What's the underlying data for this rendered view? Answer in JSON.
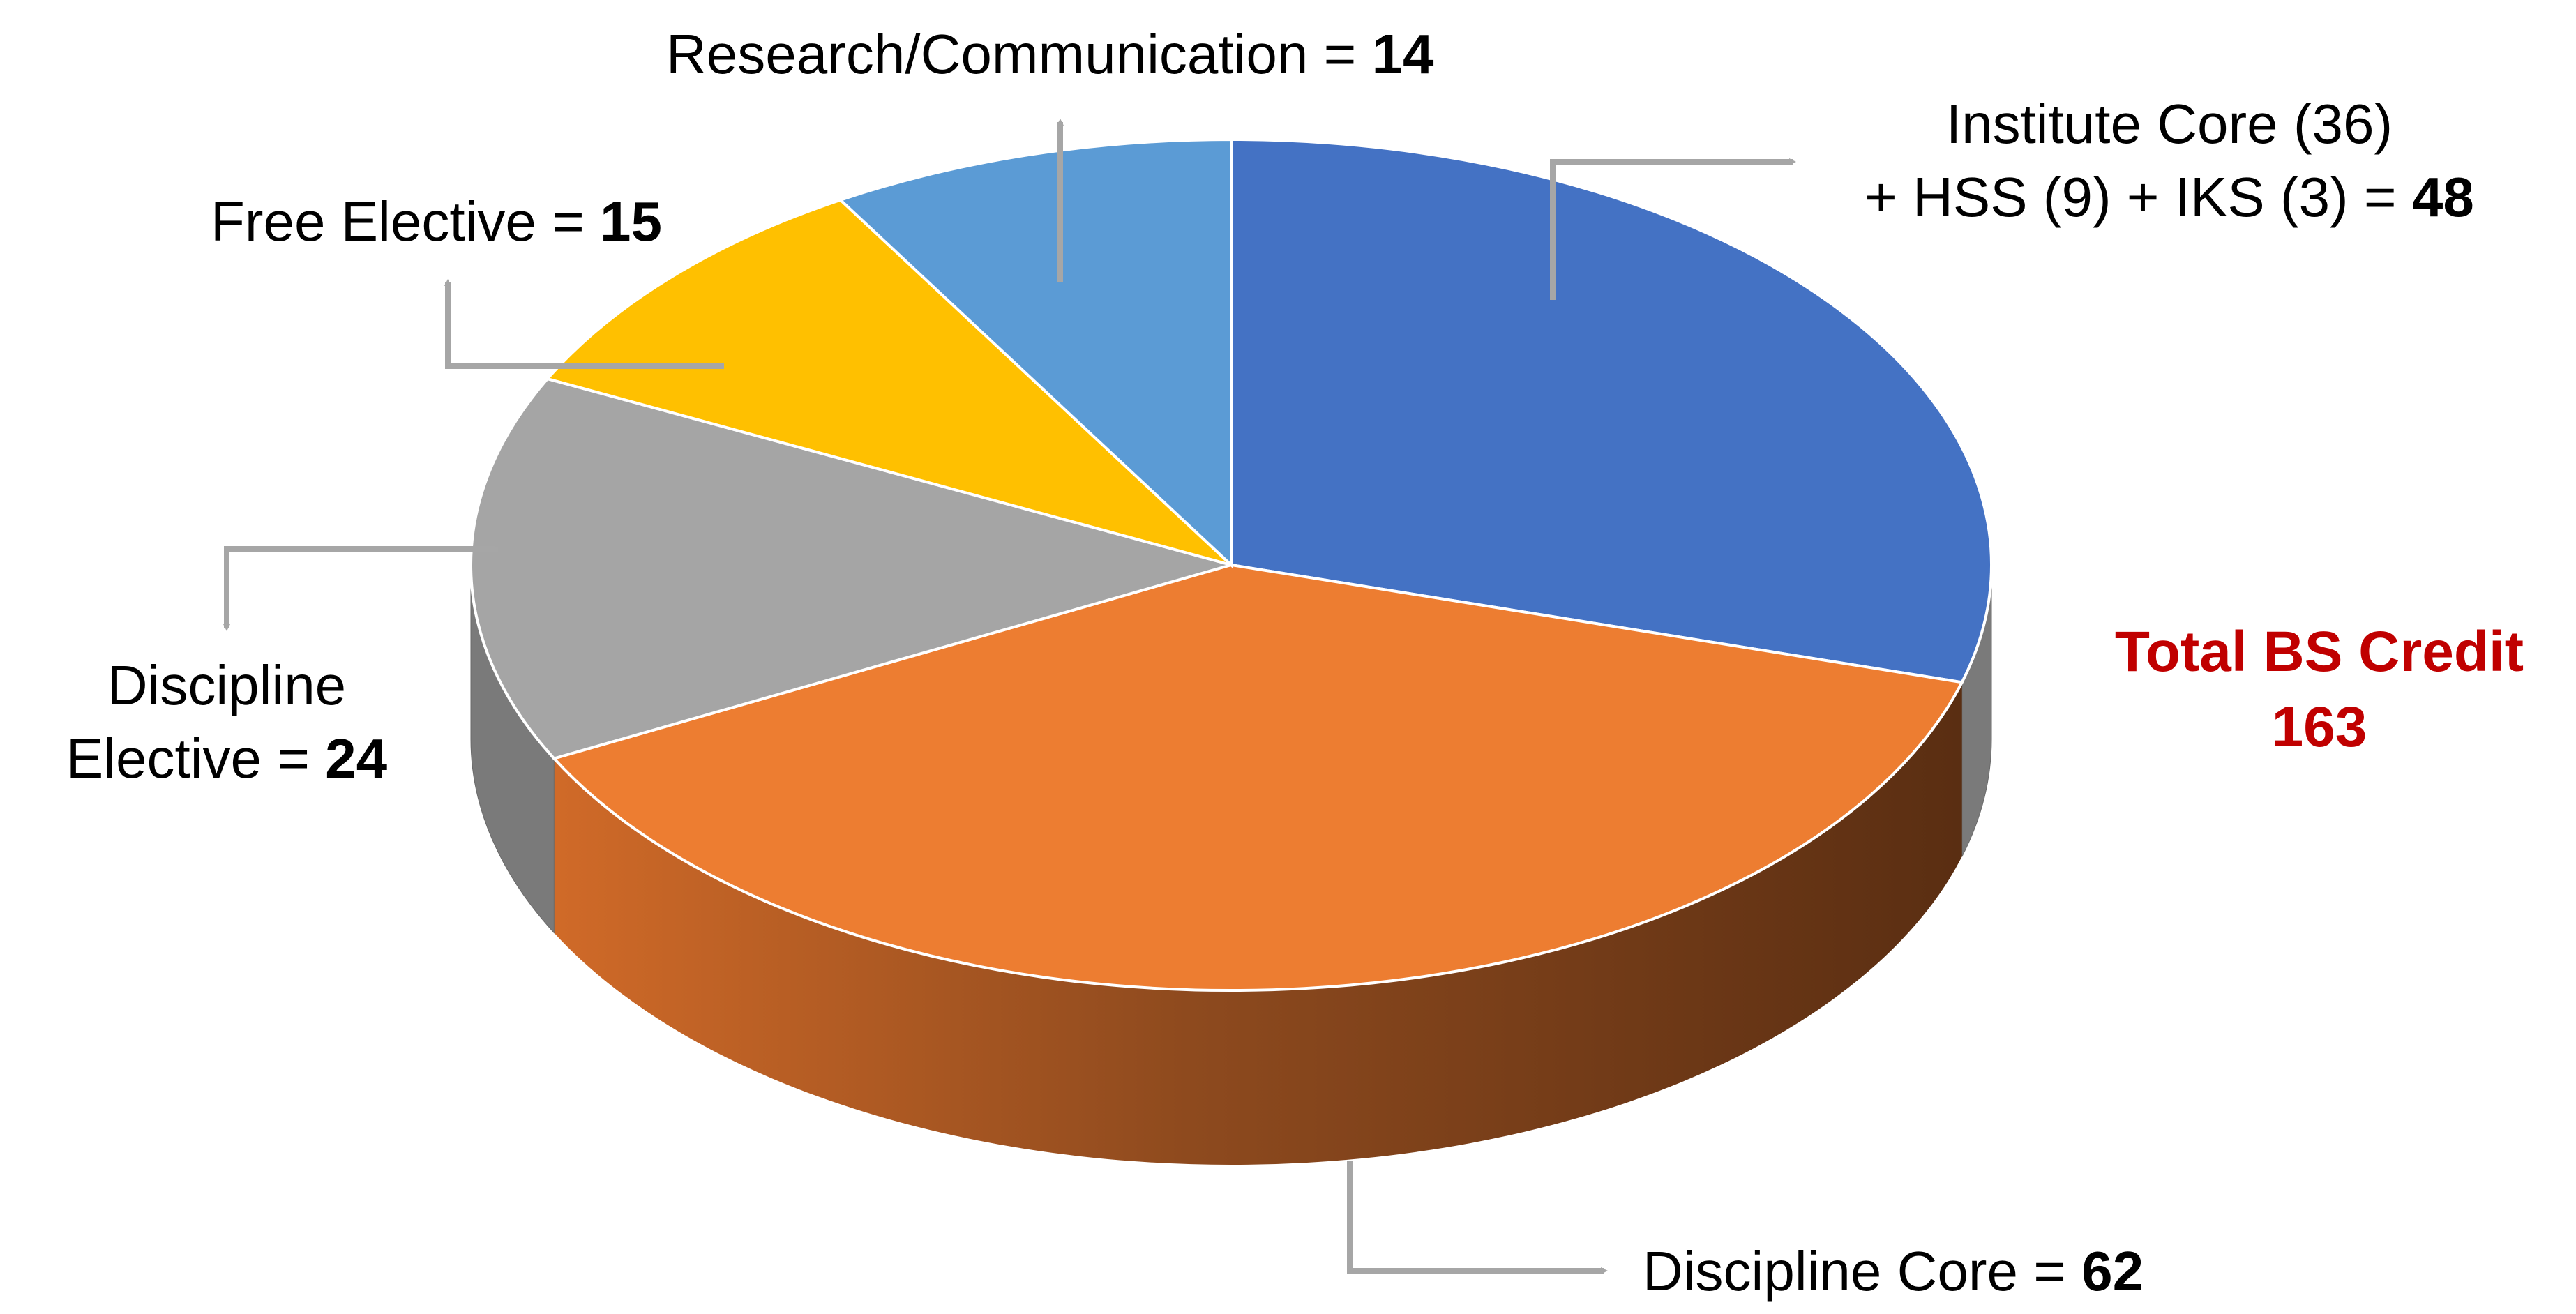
{
  "chart_data": {
    "type": "pie",
    "style": "3d",
    "slices": [
      {
        "label": "Institute Core (36) + HSS (9) + IKS (3)",
        "label_lines": [
          "Institute Core (36)",
          "+ HSS (9) + IKS (3) = "
        ],
        "value": 48,
        "color": "#4472C4"
      },
      {
        "label": "Discipline Core",
        "label_lines": [
          "Discipline Core = "
        ],
        "value": 62,
        "color": "#ED7D31"
      },
      {
        "label": "Discipline Elective",
        "label_lines": [
          "Discipline",
          "Elective = "
        ],
        "value": 24,
        "color": "#A5A5A5"
      },
      {
        "label": "Free Elective",
        "label_lines": [
          "Free Elective = "
        ],
        "value": 15,
        "color": "#FFC000"
      },
      {
        "label": "Research/Communication",
        "label_lines": [
          "Research/Communication = "
        ],
        "value": 14,
        "color": "#5B9BD5"
      }
    ],
    "total": {
      "line1": "Total BS Credit",
      "line2": "163",
      "color": "#C00000"
    },
    "leader_color": "#A6A6A6"
  }
}
